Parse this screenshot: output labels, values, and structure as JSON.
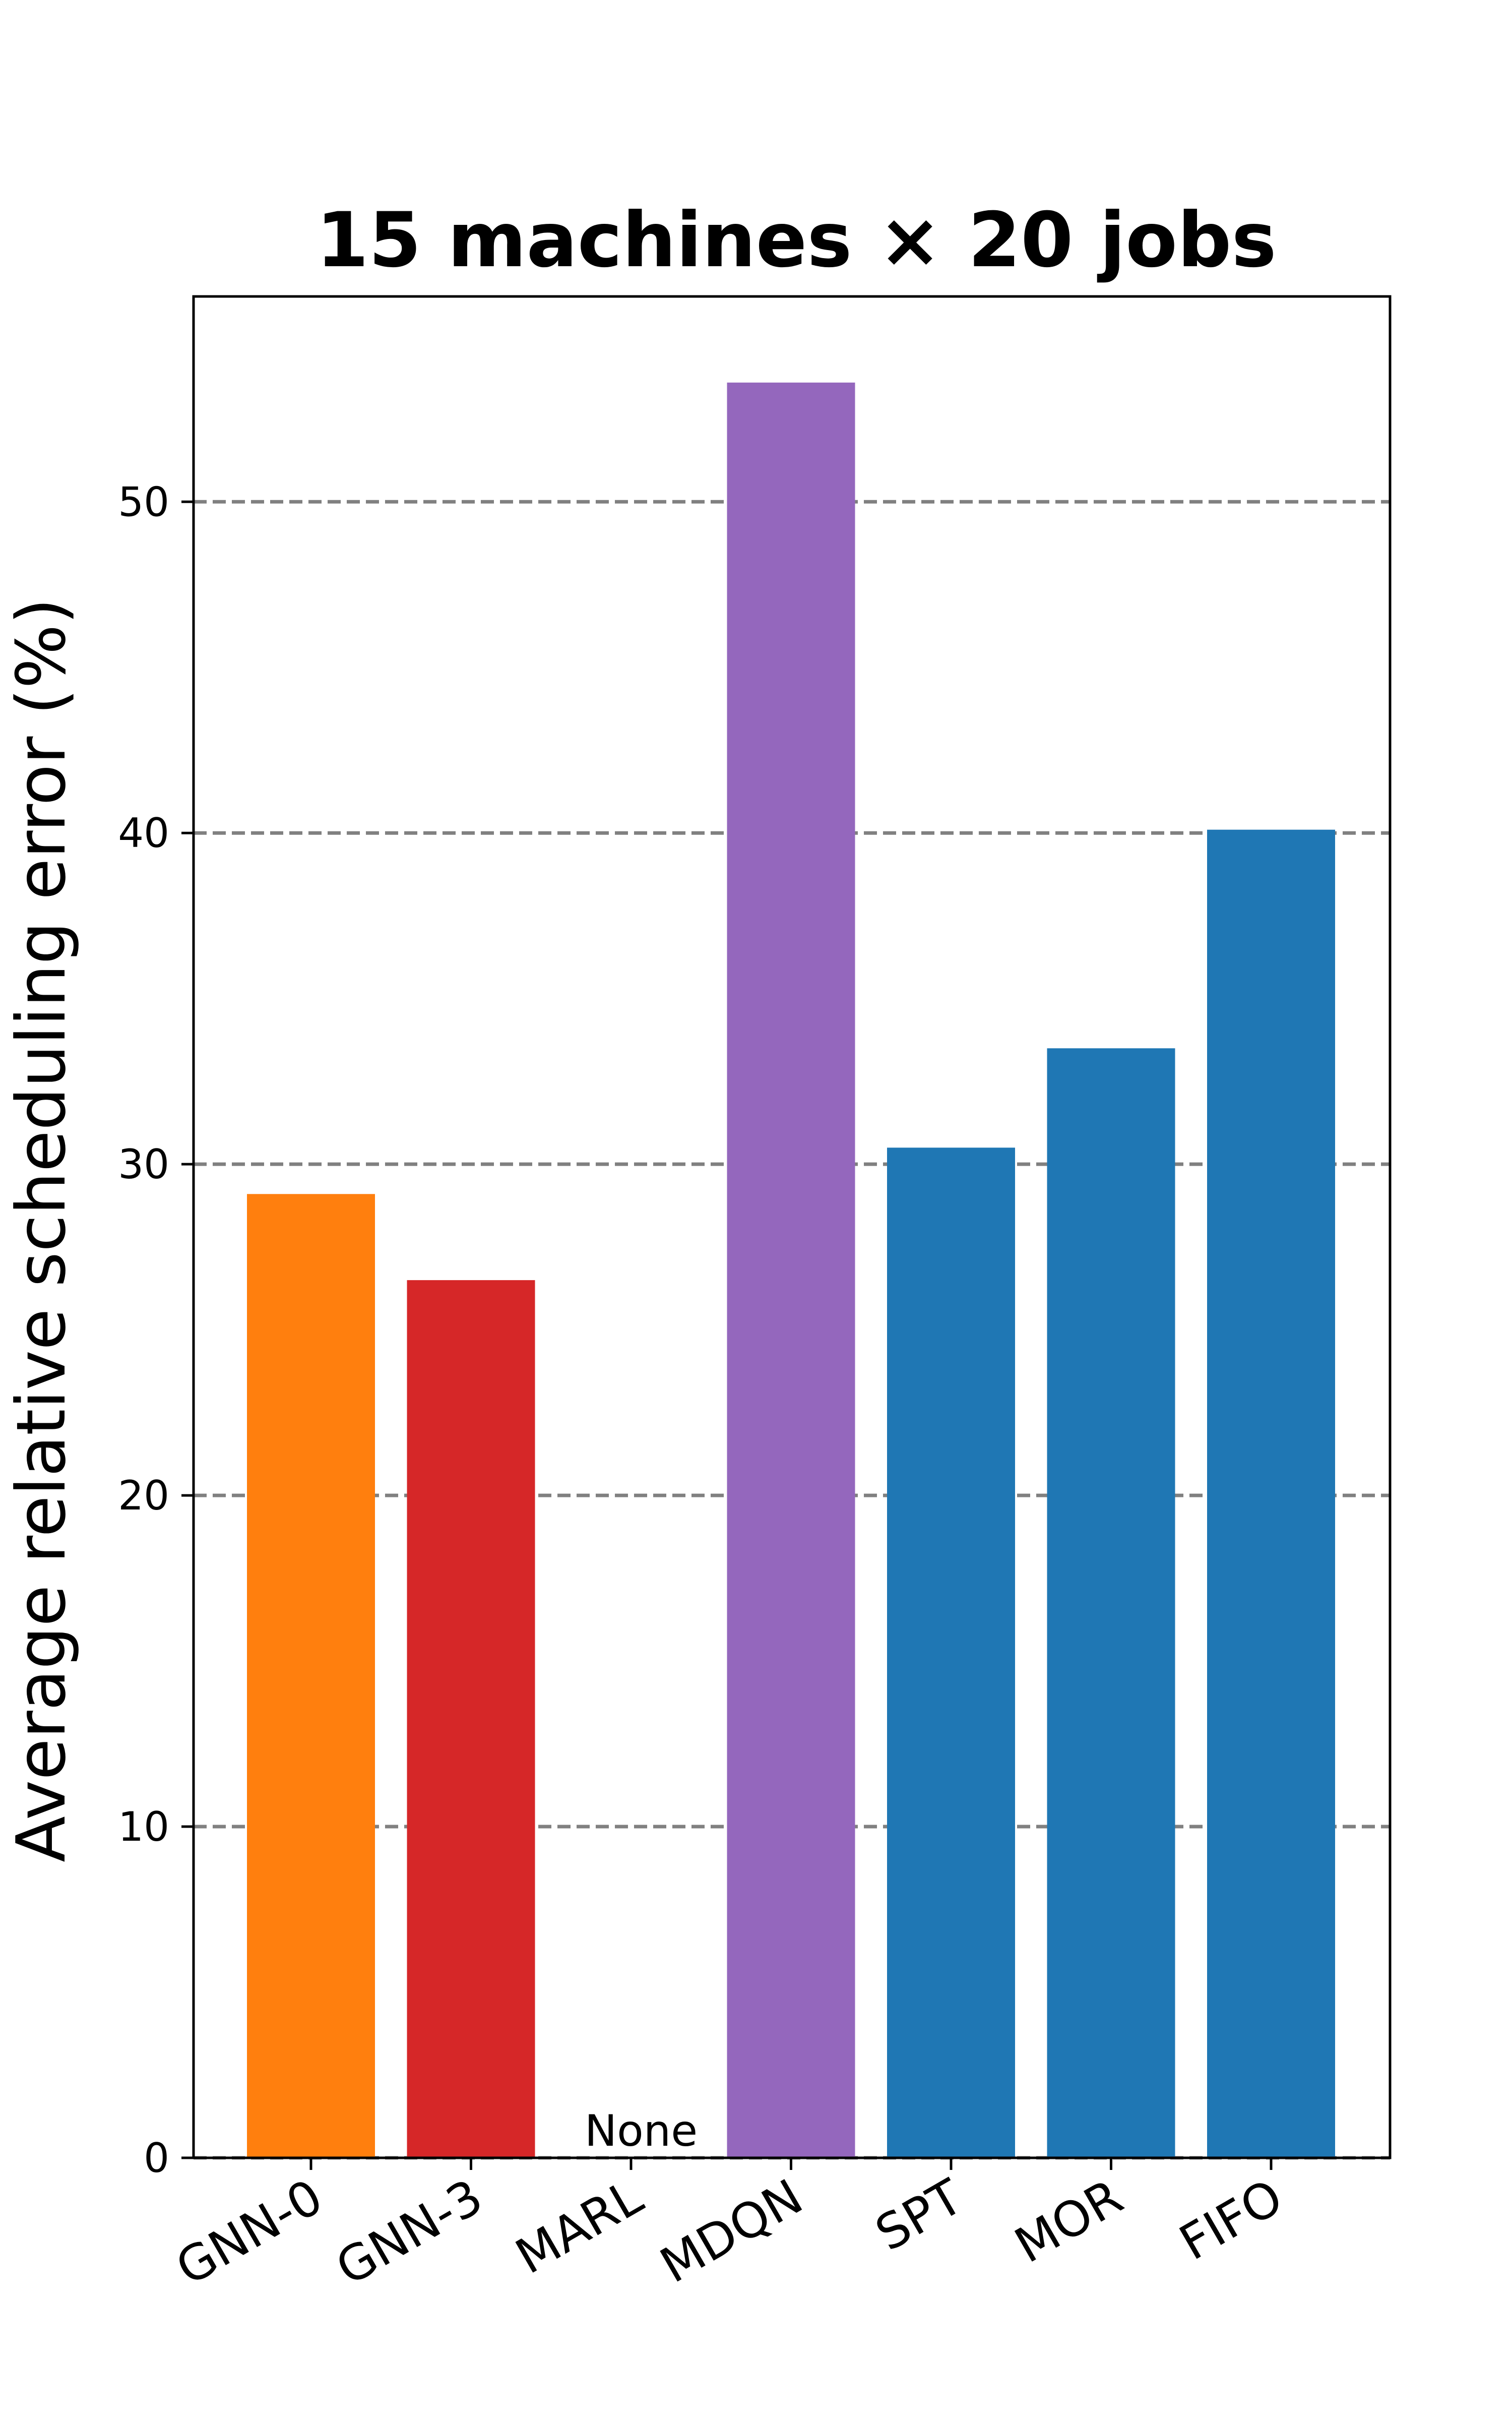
{
  "chart_data": {
    "type": "bar",
    "title": "15 machines × 20 jobs",
    "xlabel": "",
    "ylabel": "Average relative scheduling error (%)",
    "categories": [
      "GNN-0",
      "GNN-3",
      "MARL",
      "MDQN",
      "SPT",
      "MOR",
      "FIFO"
    ],
    "values": [
      29.1,
      26.5,
      null,
      53.6,
      30.5,
      33.5,
      40.1
    ],
    "colors": [
      "#ff7f0e",
      "#d62728",
      "#1f77b4",
      "#9467bd",
      "#1f77b4",
      "#1f77b4",
      "#1f77b4"
    ],
    "ylim": [
      0,
      56.2
    ],
    "yticks": [
      0,
      10,
      20,
      30,
      40,
      50
    ],
    "grid": "y-dashed",
    "annotations": [
      {
        "category": "MARL",
        "text": "None"
      }
    ]
  }
}
